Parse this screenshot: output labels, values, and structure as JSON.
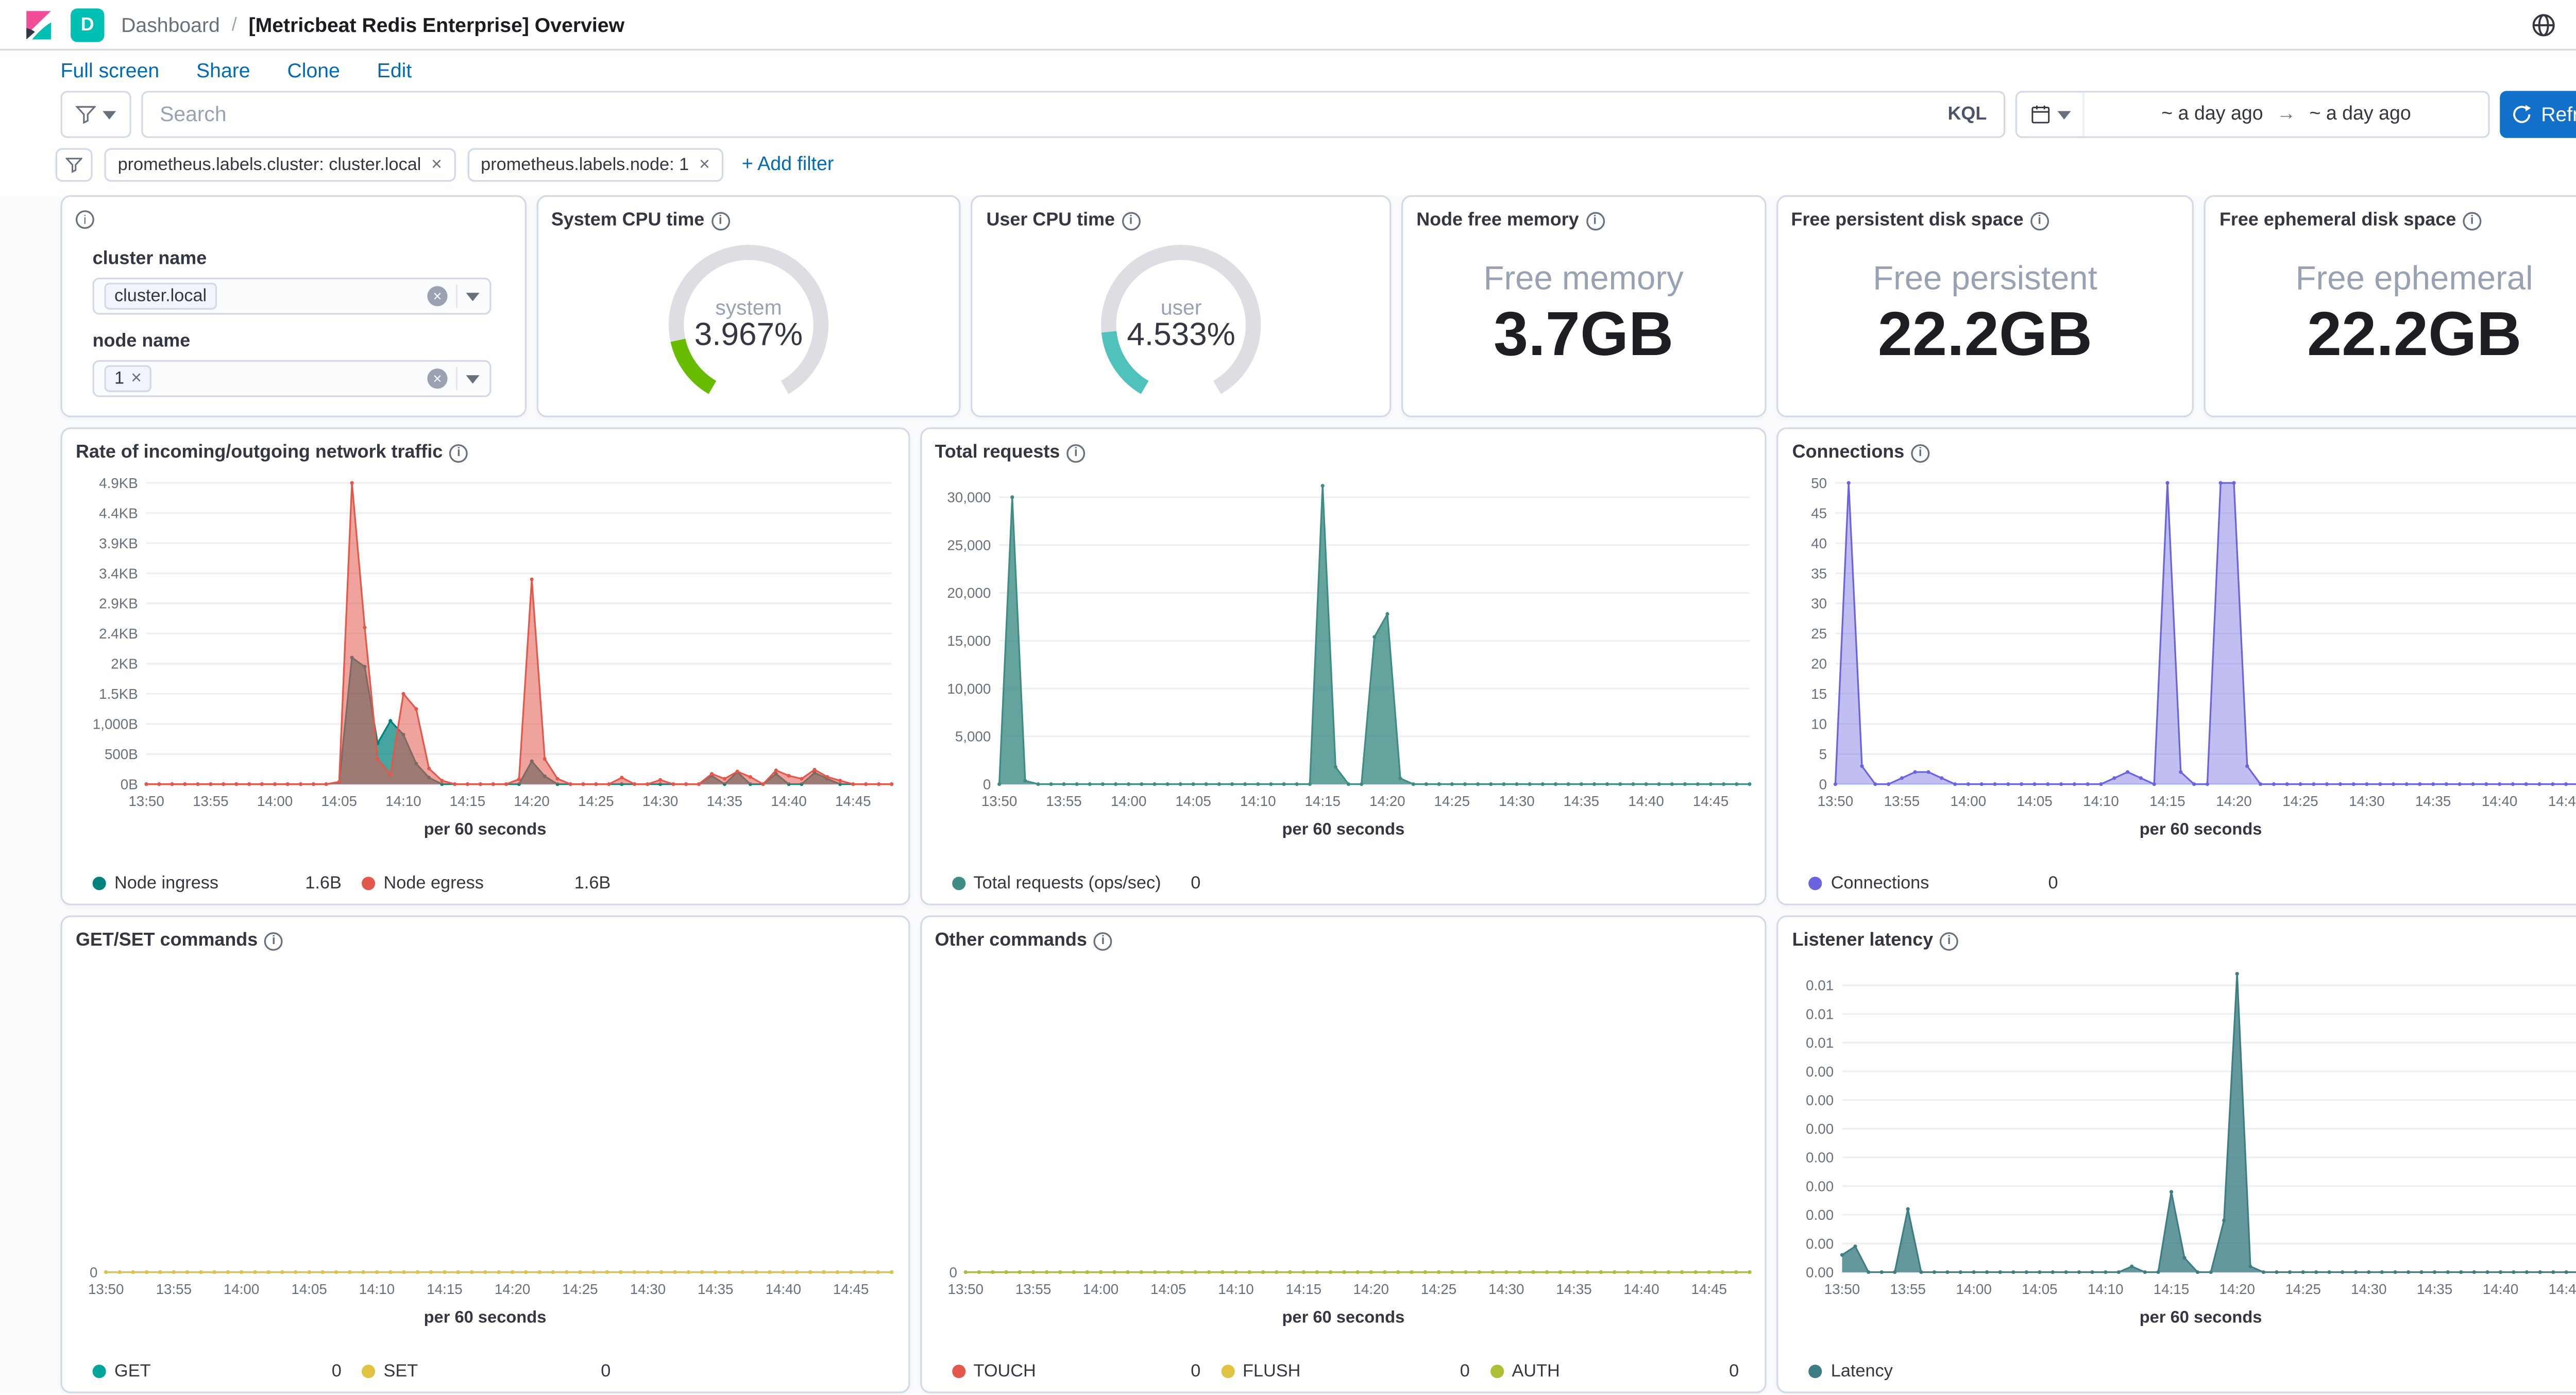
{
  "header": {
    "badge": "D",
    "breadcrumb_root": "Dashboard",
    "separator": "/",
    "title": "[Metricbeat Redis Enterprise] Overview"
  },
  "menu": {
    "items": [
      "Full screen",
      "Share",
      "Clone",
      "Edit"
    ]
  },
  "query": {
    "placeholder": "Search",
    "language": "KQL",
    "date_from": "~ a day ago",
    "date_to": "~ a day ago",
    "refresh": "Refresh"
  },
  "filters": {
    "items": [
      {
        "label": "prometheus.labels.cluster: cluster.local"
      },
      {
        "label": "prometheus.labels.node: 1"
      }
    ],
    "add_label": "+ Add filter"
  },
  "controls": {
    "cluster_label": "cluster name",
    "cluster_value": "cluster.local",
    "node_label": "node name",
    "node_value": "1"
  },
  "panels": {
    "gauges": [
      {
        "title": "System CPU time",
        "label": "system",
        "value_text": "3.967%",
        "value": 3.967,
        "max": 25,
        "color": "#68BC00"
      },
      {
        "title": "User CPU time",
        "label": "user",
        "value_text": "4.533%",
        "value": 4.533,
        "max": 25,
        "color": "#4FC2BC"
      }
    ],
    "big_metrics": [
      {
        "title": "Node free memory",
        "label": "Free memory",
        "value": "3.7GB"
      },
      {
        "title": "Free persistent disk space",
        "label": "Free persistent",
        "value": "22.2GB"
      },
      {
        "title": "Free ephemeral disk space",
        "label": "Free ephemeral",
        "value": "22.2GB"
      }
    ]
  },
  "time_axis": {
    "labels": [
      "13:50",
      "13:55",
      "14:00",
      "14:05",
      "14:10",
      "14:15",
      "14:20",
      "14:25",
      "14:30",
      "14:35",
      "14:40",
      "14:45"
    ],
    "tick_every": 5,
    "n_points": 59,
    "caption": "per 60 seconds"
  },
  "chart_data": [
    {
      "key": "network_traffic",
      "title": "Rate of incoming/outgoing network traffic",
      "type": "area",
      "margin_left": 50,
      "ylim": [
        0,
        5000
      ],
      "y_ticks": {
        "values": [
          0,
          500,
          1000,
          1500,
          2000,
          2500,
          3000,
          3500,
          4000,
          4500,
          5000
        ],
        "labels": [
          "0B",
          "500B",
          "1,000B",
          "1.5KB",
          "2KB",
          "2.4KB",
          "2.9KB",
          "3.4KB",
          "3.9KB",
          "4.4KB",
          "4.9KB"
        ]
      },
      "series": [
        {
          "name": "Node ingress",
          "legend_value": "1.6B",
          "color": "#00827C",
          "fill_opacity": 0.72,
          "points": {
            "15": 30,
            "16": 2100,
            "17": 1950,
            "18": 680,
            "19": 1050,
            "20": 820,
            "21": 340,
            "22": 110,
            "30": 380,
            "31": 130,
            "44": 140,
            "46": 200,
            "49": 170,
            "52": 190,
            "53": 90
          }
        },
        {
          "name": "Node egress",
          "legend_value": "1.6B",
          "color": "#E4584C",
          "fill_opacity": 0.55,
          "points": {
            "15": 40,
            "16": 5000,
            "17": 2600,
            "18": 420,
            "19": 160,
            "20": 1500,
            "21": 1250,
            "22": 260,
            "23": 60,
            "29": 80,
            "30": 3400,
            "31": 420,
            "32": 90,
            "37": 110,
            "40": 70,
            "44": 170,
            "45": 90,
            "46": 210,
            "47": 120,
            "49": 230,
            "50": 140,
            "51": 90,
            "52": 240,
            "53": 120,
            "54": 60
          }
        }
      ]
    },
    {
      "key": "total_requests",
      "title": "Total requests",
      "type": "area",
      "margin_left": 46,
      "ylim": [
        0,
        31500
      ],
      "y_ticks": {
        "values": [
          0,
          5000,
          10000,
          15000,
          20000,
          25000,
          30000
        ],
        "labels": [
          "0",
          "5,000",
          "10,000",
          "15,000",
          "20,000",
          "25,000",
          "30,000"
        ]
      },
      "series": [
        {
          "name": "Total requests (ops/sec)",
          "legend_value": "0",
          "color": "#3F8C84",
          "fill_opacity": 0.8,
          "points": {
            "1": 30000,
            "2": 350,
            "25": 31200,
            "26": 1800,
            "29": 15400,
            "30": 17800,
            "31": 600
          }
        }
      ]
    },
    {
      "key": "connections",
      "title": "Connections",
      "type": "area",
      "margin_left": 34,
      "ylim": [
        0,
        50
      ],
      "y_ticks": {
        "values": [
          0,
          5,
          10,
          15,
          20,
          25,
          30,
          35,
          40,
          45,
          50
        ],
        "labels": [
          "0",
          "5",
          "10",
          "15",
          "20",
          "25",
          "30",
          "35",
          "40",
          "45",
          "50"
        ]
      },
      "series": [
        {
          "name": "Connections",
          "legend_value": "0",
          "color": "#6C63DE",
          "fill_opacity": 0.42,
          "points": {
            "1": 50,
            "2": 3,
            "5": 1,
            "6": 2,
            "7": 2,
            "8": 1,
            "21": 1,
            "22": 2,
            "23": 1,
            "25": 50,
            "26": 2,
            "29": 50,
            "30": 50,
            "31": 3
          }
        }
      ]
    },
    {
      "key": "get_set_commands",
      "title": "GET/SET commands",
      "type": "area",
      "margin_left": 26,
      "ylim": [
        0,
        1
      ],
      "y_ticks": {
        "values": [
          0
        ],
        "labels": [
          "0"
        ]
      },
      "series": [
        {
          "name": "GET",
          "legend_value": "0",
          "color": "#00A69B",
          "fill_opacity": 0.5,
          "points": {}
        },
        {
          "name": "SET",
          "legend_value": "0",
          "color": "#E0C340",
          "fill_opacity": 0.5,
          "points": {}
        }
      ]
    },
    {
      "key": "other_commands",
      "title": "Other commands",
      "type": "area",
      "margin_left": 26,
      "ylim": [
        0,
        1
      ],
      "y_ticks": {
        "values": [
          0
        ],
        "labels": [
          "0"
        ]
      },
      "series": [
        {
          "name": "TOUCH",
          "legend_value": "0",
          "color": "#E4584C",
          "fill_opacity": 0.5,
          "points": {}
        },
        {
          "name": "FLUSH",
          "legend_value": "0",
          "color": "#E0C340",
          "fill_opacity": 0.5,
          "points": {}
        },
        {
          "name": "AUTH",
          "legend_value": "0",
          "color": "#AFBF34",
          "fill_opacity": 0.5,
          "points": {}
        }
      ]
    },
    {
      "key": "listener_latency",
      "title": "Listener latency",
      "type": "area",
      "margin_left": 38,
      "ylim": [
        0,
        0.0105
      ],
      "y_ticks": {
        "values": [
          0,
          0.001,
          0.002,
          0.003,
          0.004,
          0.005,
          0.006,
          0.007,
          0.008,
          0.009,
          0.01
        ],
        "labels": [
          "0.00",
          "0.00",
          "0.00",
          "0.00",
          "0.00",
          "0.00",
          "0.00",
          "0.00",
          "0.01",
          "0.01",
          "0.01"
        ]
      },
      "series": [
        {
          "name": "Latency",
          "color": "#3D7E85",
          "fill_opacity": 0.8,
          "points": {
            "0": 0.0006,
            "1": 0.0009,
            "5": 0.0022,
            "22": 0.0002,
            "25": 0.0028,
            "26": 0.0005,
            "29": 0.0018,
            "30": 0.0104,
            "31": 0.0002
          }
        }
      ]
    }
  ]
}
